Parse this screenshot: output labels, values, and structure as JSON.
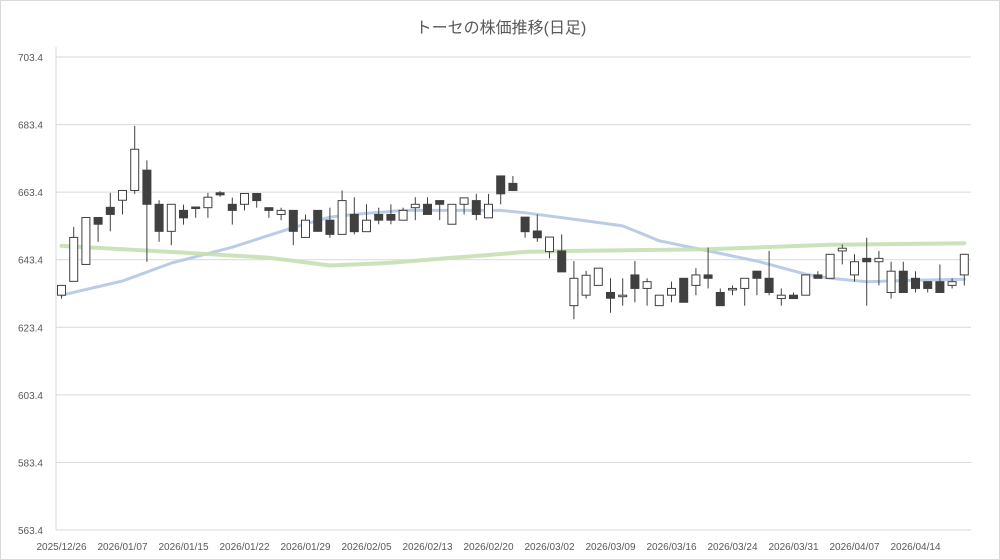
{
  "chart_data": {
    "type": "candlestick",
    "title": "トーセの株価推移(日足)",
    "xlabel": "",
    "ylabel": "",
    "ylim": [
      563.4,
      703.4
    ],
    "yticks": [
      "563.4",
      "583.4",
      "603.4",
      "623.4",
      "643.4",
      "663.4",
      "683.4",
      "703.4"
    ],
    "ytick_values": [
      563.4,
      583.4,
      603.4,
      623.4,
      643.4,
      663.4,
      683.4,
      703.4
    ],
    "xtick_labels": [
      "2025/12/26",
      "2026/01/07",
      "2026/01/15",
      "2026/01/22",
      "2026/01/29",
      "2026/02/05",
      "2026/02/13",
      "2026/02/20",
      "2026/03/02",
      "2026/03/09",
      "2026/03/16",
      "2026/03/24",
      "2026/03/31",
      "2026/04/07",
      "2026/04/14"
    ],
    "xtick_every": 5,
    "grid": true,
    "colors": {
      "up_fill": "#ffffff",
      "down_fill": "#404040",
      "outline": "#404040",
      "grid": "#d9d9d9",
      "ma_short": "#b4c7e7",
      "ma_long": "#c5e0b4"
    },
    "ohlc": [
      [
        632.9,
        635.8,
        631.9,
        635.8
      ],
      [
        637.0,
        653.1,
        637.0,
        650.0
      ],
      [
        642.0,
        655.9,
        642.0,
        655.9
      ],
      [
        655.9,
        655.9,
        648.7,
        653.9
      ],
      [
        658.9,
        663.2,
        651.8,
        656.8
      ],
      [
        661.0,
        663.9,
        656.8,
        663.9
      ],
      [
        663.9,
        683.0,
        662.9,
        676.1
      ],
      [
        669.9,
        672.8,
        642.8,
        659.8
      ],
      [
        659.8,
        661.0,
        648.7,
        651.8
      ],
      [
        651.8,
        659.8,
        647.7,
        659.8
      ],
      [
        658.0,
        659.7,
        653.8,
        655.8
      ],
      [
        659.0,
        659.0,
        655.8,
        658.6
      ],
      [
        658.8,
        663.2,
        655.8,
        661.9
      ],
      [
        663.2,
        663.7,
        662.0,
        662.6
      ],
      [
        659.8,
        661.8,
        653.8,
        658.0
      ],
      [
        659.8,
        663.0,
        658.0,
        663.0
      ],
      [
        663.0,
        663.0,
        658.8,
        660.9
      ],
      [
        658.8,
        658.8,
        655.8,
        658.0
      ],
      [
        656.8,
        658.8,
        655.1,
        658.0
      ],
      [
        658.0,
        658.0,
        647.7,
        651.8
      ],
      [
        650.0,
        656.8,
        650.0,
        655.1
      ],
      [
        658.0,
        658.0,
        651.8,
        651.8
      ],
      [
        655.1,
        658.8,
        649.9,
        650.9
      ],
      [
        650.9,
        663.9,
        650.9,
        660.9
      ],
      [
        656.8,
        661.9,
        650.9,
        651.7
      ],
      [
        651.7,
        659.8,
        651.7,
        655.1
      ],
      [
        656.8,
        658.8,
        653.9,
        655.1
      ],
      [
        656.8,
        659.8,
        653.9,
        655.1
      ],
      [
        655.1,
        658.8,
        655.1,
        658.0
      ],
      [
        658.8,
        661.9,
        655.1,
        659.8
      ],
      [
        659.8,
        661.9,
        656.8,
        656.8
      ],
      [
        660.9,
        660.9,
        655.1,
        659.8
      ],
      [
        653.9,
        659.8,
        653.9,
        659.8
      ],
      [
        659.8,
        661.7,
        656.8,
        661.7
      ],
      [
        660.9,
        662.9,
        655.1,
        656.8
      ],
      [
        655.8,
        662.9,
        655.8,
        659.8
      ],
      [
        668.2,
        668.2,
        659.8,
        662.9
      ],
      [
        666.0,
        668.2,
        663.9,
        663.9
      ],
      [
        656.0,
        656.0,
        649.9,
        651.7
      ],
      [
        651.9,
        656.8,
        648.7,
        649.9
      ],
      [
        645.8,
        650.1,
        643.8,
        650.1
      ],
      [
        646.0,
        650.9,
        639.8,
        639.8
      ],
      [
        629.8,
        643.0,
        625.8,
        637.9
      ],
      [
        632.9,
        640.1,
        631.9,
        638.8
      ],
      [
        635.8,
        640.9,
        635.8,
        640.9
      ],
      [
        633.7,
        637.9,
        627.7,
        632.0
      ],
      [
        632.6,
        637.9,
        629.8,
        632.9
      ],
      [
        638.9,
        643.0,
        630.8,
        634.9
      ],
      [
        634.9,
        637.9,
        629.8,
        636.9
      ],
      [
        629.8,
        632.9,
        629.8,
        632.9
      ],
      [
        632.9,
        636.9,
        630.8,
        634.9
      ],
      [
        637.9,
        637.9,
        630.8,
        630.8
      ],
      [
        635.8,
        640.9,
        632.9,
        638.9
      ],
      [
        638.9,
        647.0,
        634.9,
        637.9
      ],
      [
        633.7,
        634.9,
        629.8,
        629.8
      ],
      [
        634.6,
        635.8,
        632.9,
        634.9
      ],
      [
        634.9,
        637.9,
        629.8,
        637.9
      ],
      [
        640.0,
        640.0,
        632.9,
        637.9
      ],
      [
        637.9,
        646.0,
        632.9,
        633.7
      ],
      [
        631.9,
        634.9,
        629.8,
        632.9
      ],
      [
        632.9,
        633.7,
        631.9,
        631.9
      ],
      [
        632.9,
        638.9,
        632.9,
        638.9
      ],
      [
        638.9,
        640.0,
        637.9,
        637.9
      ],
      [
        637.9,
        645.0,
        637.9,
        645.0
      ],
      [
        646.0,
        647.9,
        642.0,
        646.8
      ],
      [
        638.9,
        645.0,
        636.9,
        642.8
      ],
      [
        643.8,
        649.9,
        629.8,
        642.8
      ],
      [
        642.8,
        646.0,
        635.8,
        643.8
      ],
      [
        633.7,
        642.8,
        631.9,
        640.0
      ],
      [
        640.0,
        642.8,
        633.7,
        633.7
      ],
      [
        637.9,
        640.0,
        633.7,
        634.9
      ],
      [
        636.9,
        636.9,
        633.7,
        634.9
      ],
      [
        636.9,
        642.0,
        633.7,
        633.7
      ],
      [
        635.8,
        637.9,
        634.9,
        636.9
      ],
      [
        638.9,
        645.0,
        635.8,
        645.0
      ]
    ],
    "ohlc_order": [
      "open",
      "high",
      "low",
      "close"
    ],
    "series": [
      {
        "name": "moving-average-short",
        "knots": [
          [
            0,
            632.9
          ],
          [
            5,
            637.1
          ],
          [
            9,
            642.4
          ],
          [
            14,
            647.1
          ],
          [
            19,
            652.9
          ],
          [
            22,
            656.0
          ],
          [
            24,
            656.8
          ],
          [
            28,
            658.0
          ],
          [
            36,
            658.0
          ],
          [
            38,
            657.3
          ],
          [
            43,
            654.9
          ],
          [
            46,
            653.4
          ],
          [
            49,
            649.0
          ],
          [
            53,
            646.0
          ],
          [
            57,
            643.0
          ],
          [
            61,
            639.1
          ],
          [
            63,
            637.9
          ],
          [
            66,
            636.9
          ],
          [
            70,
            637.3
          ],
          [
            74,
            637.6
          ]
        ]
      },
      {
        "name": "moving-average-long",
        "knots": [
          [
            0,
            647.5
          ],
          [
            10,
            645.5
          ],
          [
            17,
            644.0
          ],
          [
            22,
            641.7
          ],
          [
            27,
            642.5
          ],
          [
            32,
            644.0
          ],
          [
            35,
            644.8
          ],
          [
            38,
            645.7
          ],
          [
            42,
            646.0
          ],
          [
            53,
            646.5
          ],
          [
            63,
            647.8
          ],
          [
            74,
            648.3
          ]
        ]
      }
    ]
  }
}
